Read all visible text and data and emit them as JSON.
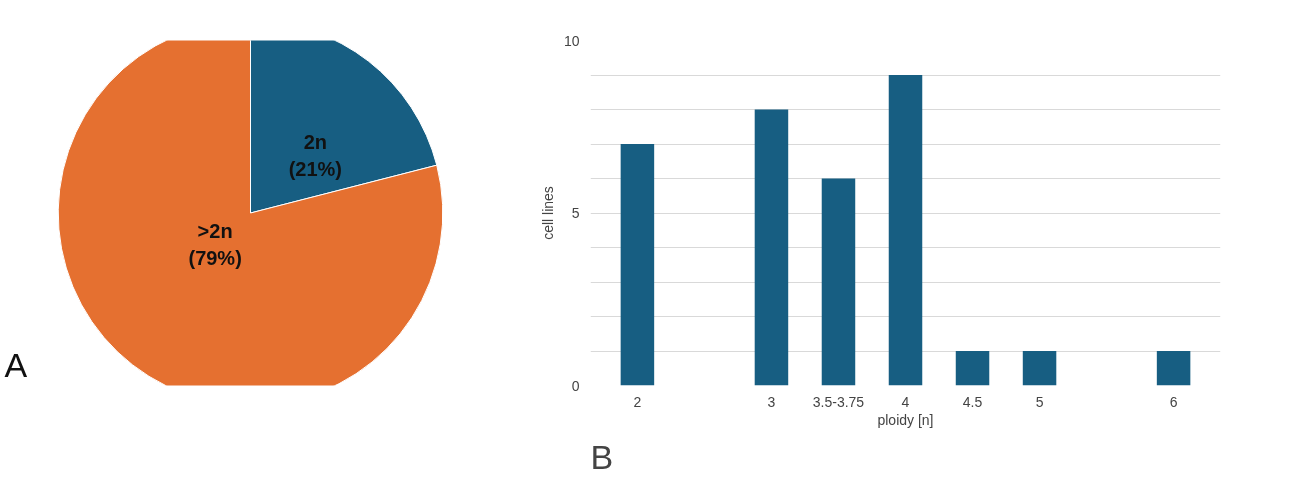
{
  "chart_data": [
    {
      "type": "pie",
      "categories": [
        "2n",
        ">2n"
      ],
      "values": [
        21,
        79
      ],
      "colors": [
        "#175e82",
        "#e57030"
      ],
      "value_labels": [
        "(21%)",
        "(79%)"
      ],
      "annotations": [
        "A"
      ]
    },
    {
      "type": "bar",
      "categories": [
        "2",
        null,
        "3",
        "3.5-3.75",
        "4",
        "4.5",
        "5",
        null,
        "6"
      ],
      "values": [
        7,
        null,
        8,
        6,
        9,
        1,
        1,
        null,
        1
      ],
      "color": "#175e82",
      "xlabel": "ploidy [n]",
      "ylabel": "cell lines",
      "ylim": [
        0,
        10
      ],
      "yticks": [
        0,
        {
          "value": 1,
          "label": null
        },
        {
          "value": 2,
          "label": null
        },
        {
          "value": 3,
          "label": null
        },
        {
          "value": 4,
          "label": null
        },
        5,
        {
          "value": 6,
          "label": null
        },
        {
          "value": 7,
          "label": null
        },
        {
          "value": 8,
          "label": null
        },
        {
          "value": 9,
          "label": null
        },
        10
      ],
      "grid": "y",
      "annotations": [
        "B"
      ]
    }
  ]
}
